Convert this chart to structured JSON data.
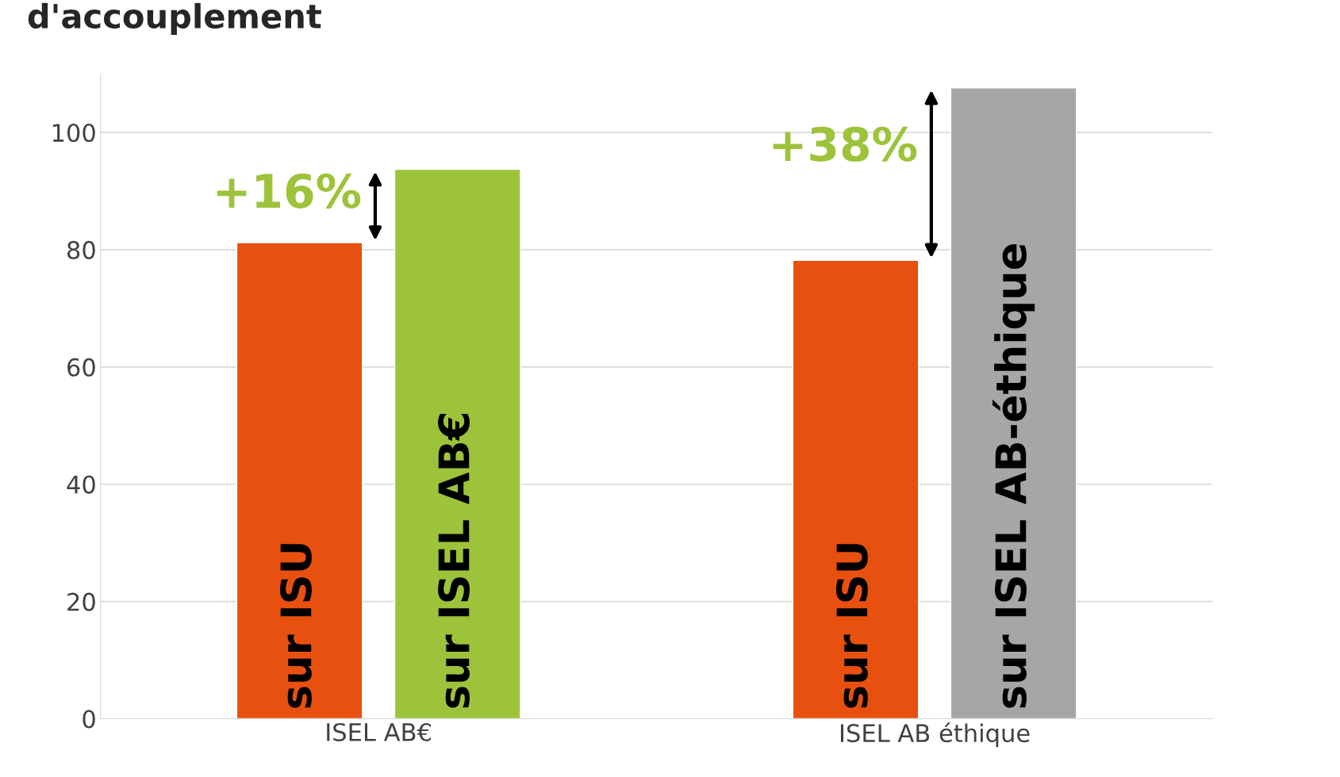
{
  "chart_data": {
    "type": "bar",
    "title": "d'accouplement",
    "categories": [
      "ISEL AB€",
      "ISEL AB éthique"
    ],
    "series": [
      {
        "color": "#e8500f",
        "values": [
          81.2,
          78.2
        ],
        "value_labels": [
          "sur ISU",
          "sur ISU"
        ]
      },
      {
        "colors": [
          "#9dc33b",
          "#a6a6a6"
        ],
        "values": [
          93.7,
          107.6
        ],
        "value_labels": [
          "sur ISEL AB€",
          "sur ISEL AB-éthique"
        ]
      }
    ],
    "annotations": [
      "+16%",
      "+38%"
    ],
    "ylim": [
      0,
      110
    ],
    "yticks": [
      0,
      20,
      40,
      60,
      80,
      100
    ],
    "grid": "y",
    "legend": false
  }
}
